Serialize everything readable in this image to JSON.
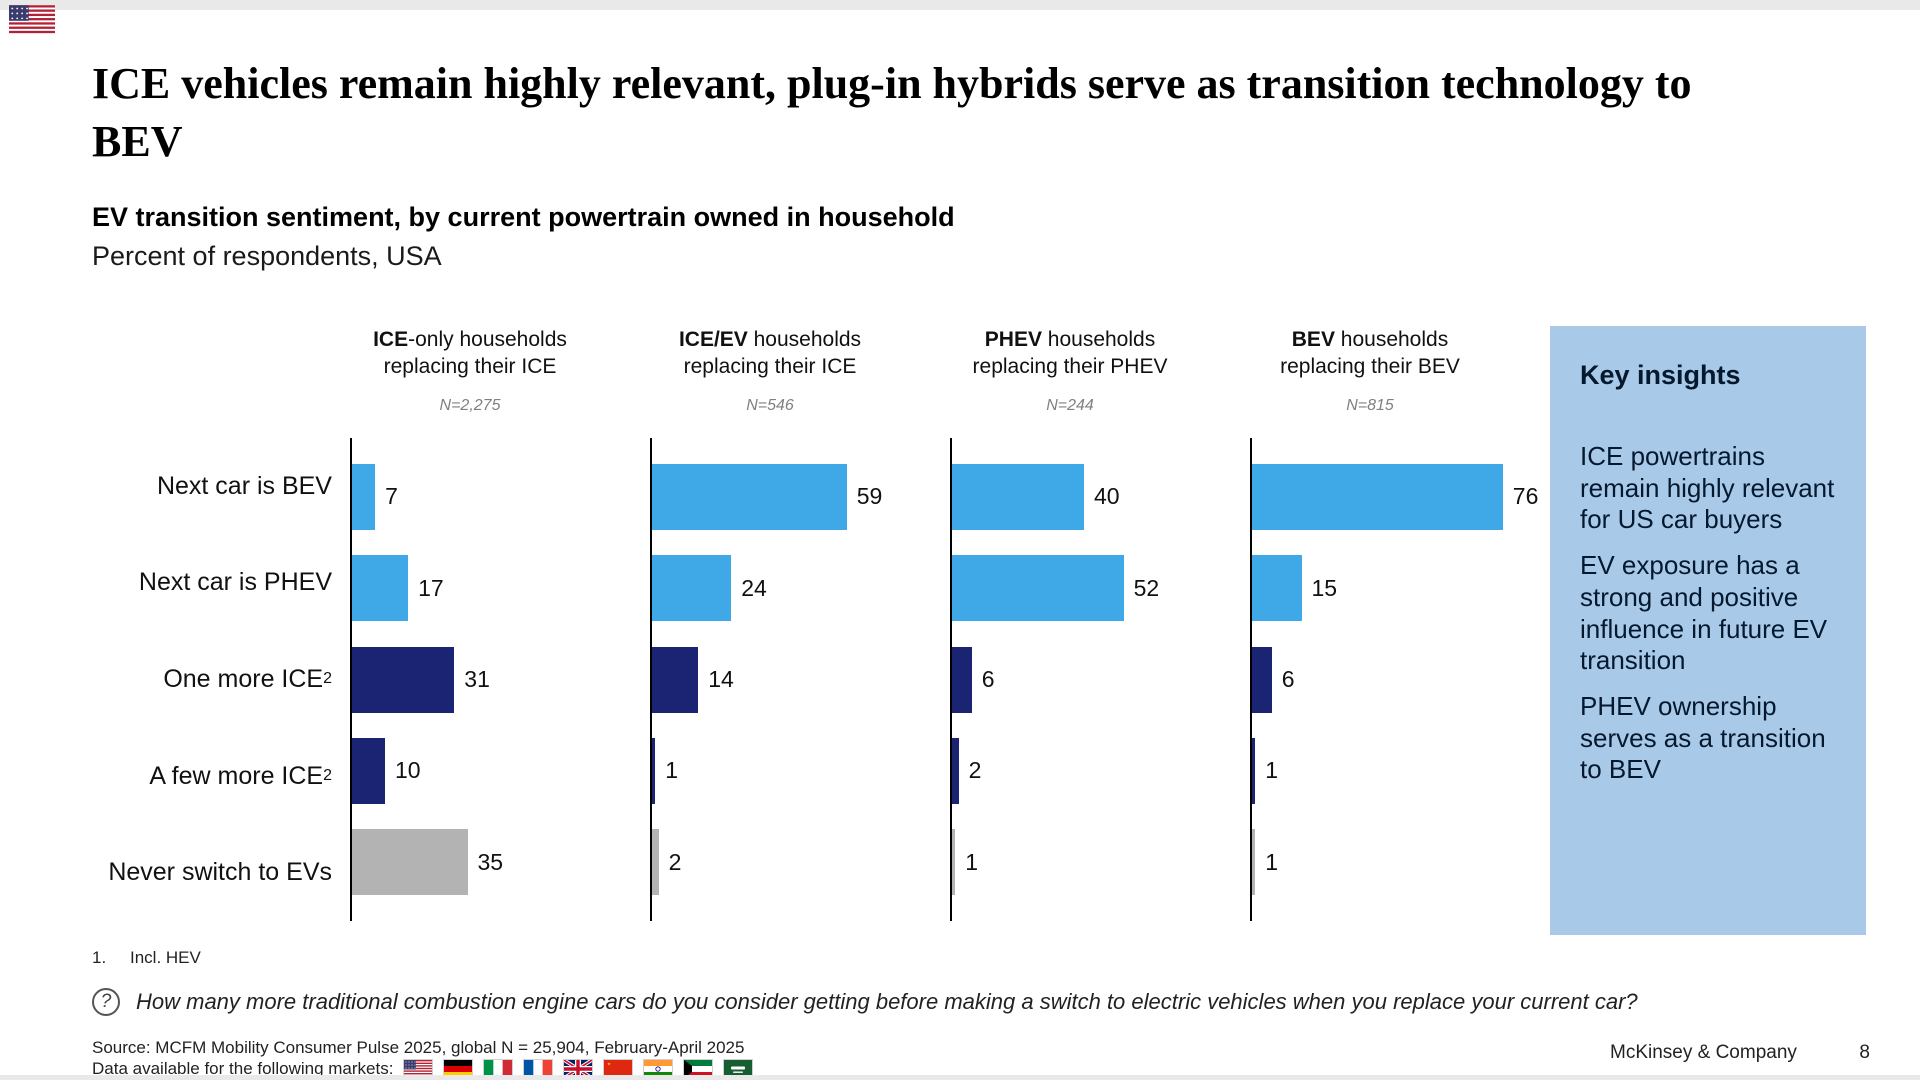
{
  "slide": {
    "title": "ICE vehicles remain highly relevant, plug-in hybrids serve as transition technology to BEV",
    "subtitle_bold": "EV transition sentiment, by current powertrain owned in household",
    "subtitle": "Percent of respondents, USA"
  },
  "chart_data": {
    "type": "bar",
    "orientation": "horizontal",
    "unit": "percent of respondents",
    "xlim": [
      0,
      100
    ],
    "grid": false,
    "categories": [
      "Next car is BEV",
      "Next car is PHEV",
      "One more ICE",
      "A few more ICE",
      "Never switch to EVs"
    ],
    "category_superscripts": [
      "",
      "",
      "2",
      "2",
      ""
    ],
    "series": [
      {
        "name_bold": "ICE",
        "name_rest": "-only households",
        "line2": "replacing their ICE",
        "n_label": "N=2,275",
        "values": [
          7,
          17,
          31,
          10,
          35
        ]
      },
      {
        "name_bold": "ICE/EV",
        "name_rest": " households",
        "line2": "replacing their ICE",
        "n_label": "N=546",
        "values": [
          59,
          24,
          14,
          1,
          2
        ]
      },
      {
        "name_bold": "PHEV",
        "name_rest": " households",
        "line2": "replacing their PHEV",
        "n_label": "N=244",
        "values": [
          40,
          52,
          6,
          2,
          1
        ]
      },
      {
        "name_bold": "BEV",
        "name_rest": " households",
        "line2": "replacing their BEV",
        "n_label": "N=815",
        "values": [
          76,
          15,
          6,
          1,
          1
        ]
      }
    ],
    "bar_colors_by_row": [
      "#3fa9e8",
      "#3fa9e8",
      "#1b2472",
      "#1b2472",
      "#b3b3b3"
    ]
  },
  "key_insights": {
    "title": "Key insights",
    "background": "#a9c9e9",
    "items": [
      "ICE powertrains remain highly relevant for US car buyers",
      "EV exposure has a strong and positive influence in future EV transition",
      "PHEV ownership serves as a transition to BEV"
    ]
  },
  "footer": {
    "footnote_number": "1.",
    "footnote_text": "Incl. HEV",
    "question_mark": "?",
    "question": "How many more traditional combustion engine cars do you consider getting before making a switch to electric vehicles when you replace your current car?",
    "source": "Source: MCFM Mobility Consumer Pulse 2025, global N = 25,904, February-April 2025",
    "markets_label": "Data available for the following markets:",
    "market_flags": [
      "usa",
      "germany",
      "italy",
      "france",
      "uk",
      "china",
      "india",
      "kuwait",
      "saudi-arabia"
    ],
    "corner_flag": "usa",
    "brand": "McKinsey & Company",
    "page_number": "8"
  }
}
